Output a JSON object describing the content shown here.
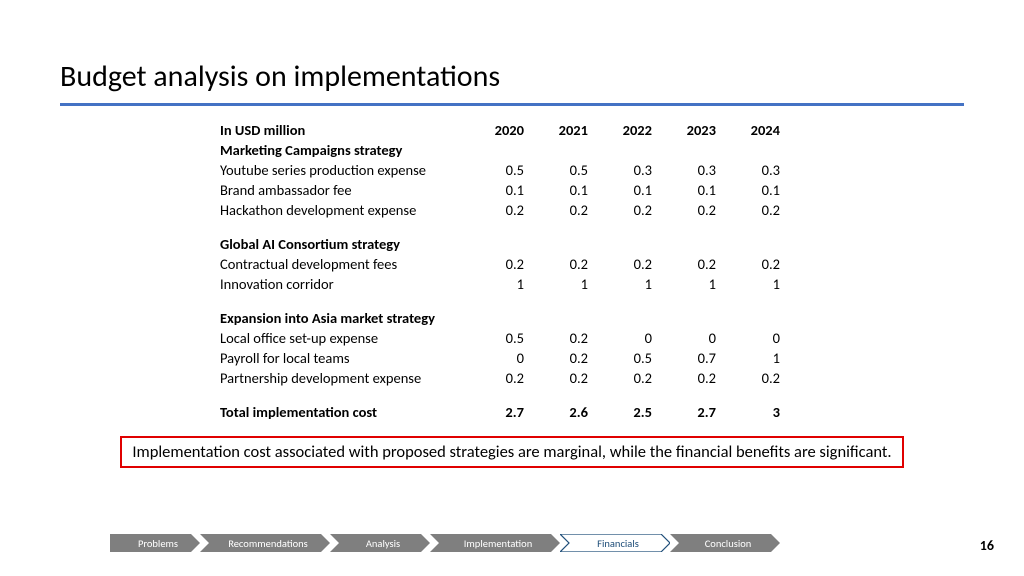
{
  "title": "Budget analysis on implementations",
  "table": {
    "header_label": "In USD million",
    "years": [
      "2020",
      "2021",
      "2022",
      "2023",
      "2024"
    ],
    "sections": [
      {
        "name": "Marketing Campaigns strategy",
        "rows": [
          {
            "label": "Youtube series production expense",
            "vals": [
              "0.5",
              "0.5",
              "0.3",
              "0.3",
              "0.3"
            ]
          },
          {
            "label": "Brand ambassador fee",
            "vals": [
              "0.1",
              "0.1",
              "0.1",
              "0.1",
              "0.1"
            ]
          },
          {
            "label": "Hackathon development expense",
            "vals": [
              "0.2",
              "0.2",
              "0.2",
              "0.2",
              "0.2"
            ]
          }
        ]
      },
      {
        "name": "Global AI Consortium strategy",
        "rows": [
          {
            "label": "Contractual development fees",
            "vals": [
              "0.2",
              "0.2",
              "0.2",
              "0.2",
              "0.2"
            ]
          },
          {
            "label": "Innovation corridor",
            "vals": [
              "1",
              "1",
              "1",
              "1",
              "1"
            ]
          }
        ]
      },
      {
        "name": "Expansion into Asia market strategy",
        "rows": [
          {
            "label": "Local office set-up expense",
            "vals": [
              "0.5",
              "0.2",
              "0",
              "0",
              "0"
            ]
          },
          {
            "label": "Payroll for local teams",
            "vals": [
              "0",
              "0.2",
              "0.5",
              "0.7",
              "1"
            ]
          },
          {
            "label": "Partnership development expense",
            "vals": [
              "0.2",
              "0.2",
              "0.2",
              "0.2",
              "0.2"
            ]
          }
        ]
      }
    ],
    "total": {
      "label": "Total implementation cost",
      "vals": [
        "2.7",
        "2.6",
        "2.5",
        "2.7",
        "3"
      ]
    }
  },
  "callout": "Implementation cost associated with proposed strategies are marginal, while the financial benefits are significant.",
  "nav": {
    "items": [
      "Problems",
      "Recommendations",
      "Analysis",
      "Implementation",
      "Financials",
      "Conclusion"
    ],
    "active_index": 4,
    "inactive_fill": "#7f7f7f",
    "active_fill": "#ffffff",
    "active_stroke": "#1f4e79",
    "active_text": "#1f4e79"
  },
  "page_number": "16",
  "colors": {
    "divider": "#4472c4",
    "callout_border": "#e00000"
  }
}
